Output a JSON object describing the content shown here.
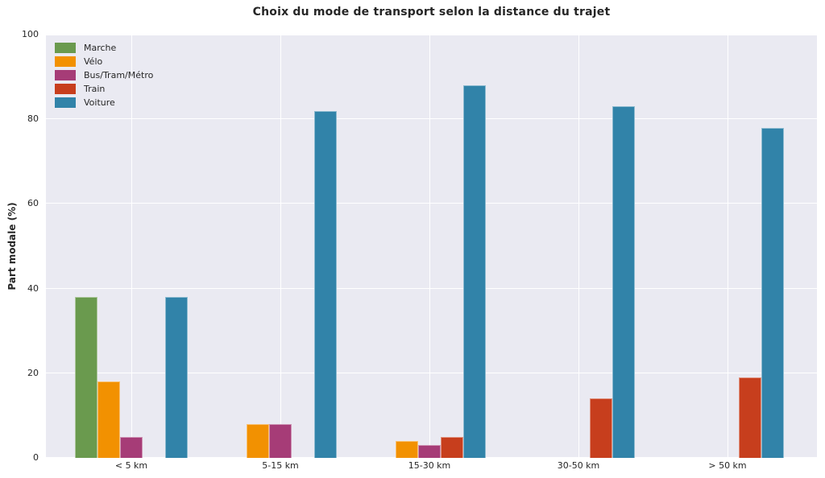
{
  "chart_data": {
    "type": "bar",
    "title": "Choix du mode de transport selon la distance du trajet",
    "xlabel": "",
    "ylabel": "Part modale (%)",
    "categories": [
      "< 5 km",
      "5-15 km",
      "15-30 km",
      "30-50 km",
      "> 50 km"
    ],
    "series": [
      {
        "name": "Marche",
        "key": "marche",
        "color": "#6A9A4E",
        "values": [
          38,
          0,
          0,
          0,
          0
        ]
      },
      {
        "name": "Vélo",
        "key": "velo",
        "color": "#F29101",
        "values": [
          18,
          8,
          4,
          0,
          0
        ]
      },
      {
        "name": "Bus/Tram/Métro",
        "key": "bus-tram-metro",
        "color": "#A63C77",
        "values": [
          5,
          8,
          3,
          0,
          0
        ]
      },
      {
        "name": "Train",
        "key": "train",
        "color": "#C73E1D",
        "values": [
          0,
          0,
          5,
          14,
          19
        ]
      },
      {
        "name": "Voiture",
        "key": "voiture",
        "color": "#3183A9",
        "values": [
          38,
          82,
          88,
          83,
          78
        ]
      }
    ],
    "ylim": [
      0,
      100
    ],
    "yticks": [
      0,
      20,
      40,
      60,
      80,
      100
    ],
    "grid": true,
    "legend_position": "upper left",
    "plot_background": "#eaeaf2",
    "grid_color": "#ffffff"
  }
}
